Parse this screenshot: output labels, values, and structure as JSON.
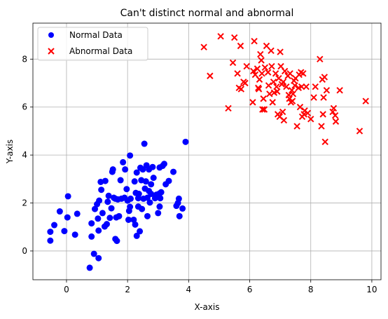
{
  "chart_data": {
    "type": "scatter",
    "title": "Can't distinct normal and abnormal",
    "xlabel": "X-axis",
    "ylabel": "Y-axis",
    "xlim": [
      -1.1,
      10.3
    ],
    "ylim": [
      -1.2,
      9.5
    ],
    "xticks": [
      0,
      2,
      4,
      6,
      8,
      10
    ],
    "yticks": [
      0,
      2,
      4,
      6,
      8
    ],
    "grid": true,
    "legend_position": "upper left",
    "series": [
      {
        "name": "Normal Data",
        "marker": "circle",
        "color": "#0000ff",
        "points": [
          [
            -0.53,
            0.43
          ],
          [
            -0.53,
            0.8
          ],
          [
            -0.4,
            1.08
          ],
          [
            -0.22,
            1.65
          ],
          [
            -0.07,
            0.83
          ],
          [
            0.03,
            1.4
          ],
          [
            0.05,
            2.28
          ],
          [
            0.28,
            0.68
          ],
          [
            0.35,
            1.55
          ],
          [
            0.76,
            -0.7
          ],
          [
            0.82,
            1.15
          ],
          [
            0.82,
            0.6
          ],
          [
            0.9,
            -0.12
          ],
          [
            0.93,
            1.75
          ],
          [
            1.0,
            1.95
          ],
          [
            1.05,
            0.85
          ],
          [
            1.03,
            1.35
          ],
          [
            1.05,
            -0.3
          ],
          [
            1.07,
            2.1
          ],
          [
            1.12,
            2.88
          ],
          [
            1.14,
            2.55
          ],
          [
            1.18,
            1.58
          ],
          [
            1.25,
            1.02
          ],
          [
            1.27,
            2.92
          ],
          [
            1.32,
            1.12
          ],
          [
            1.35,
            2.05
          ],
          [
            1.38,
            2.3
          ],
          [
            1.42,
            1.38
          ],
          [
            1.47,
            1.78
          ],
          [
            1.5,
            3.3
          ],
          [
            1.52,
            3.4
          ],
          [
            1.55,
            2.22
          ],
          [
            1.6,
            2.18
          ],
          [
            1.6,
            0.5
          ],
          [
            1.63,
            1.4
          ],
          [
            1.65,
            0.42
          ],
          [
            1.68,
            2.15
          ],
          [
            1.72,
            1.45
          ],
          [
            1.77,
            2.95
          ],
          [
            1.8,
            2.18
          ],
          [
            1.85,
            3.7
          ],
          [
            1.9,
            2.22
          ],
          [
            1.92,
            3.4
          ],
          [
            1.97,
            2.58
          ],
          [
            2.03,
            1.3
          ],
          [
            2.05,
            1.67
          ],
          [
            2.08,
            1.84
          ],
          [
            2.08,
            3.98
          ],
          [
            2.1,
            2.18
          ],
          [
            2.2,
            1.3
          ],
          [
            2.23,
            2.9
          ],
          [
            2.25,
            1.1
          ],
          [
            2.27,
            2.42
          ],
          [
            2.3,
            0.63
          ],
          [
            2.3,
            3.27
          ],
          [
            2.35,
            1.85
          ],
          [
            2.35,
            2.2
          ],
          [
            2.37,
            2.38
          ],
          [
            2.4,
            0.82
          ],
          [
            2.42,
            3.47
          ],
          [
            2.45,
            2.95
          ],
          [
            2.47,
            1.75
          ],
          [
            2.5,
            3.4
          ],
          [
            2.52,
            2.18
          ],
          [
            2.55,
            4.47
          ],
          [
            2.57,
            2.6
          ],
          [
            2.6,
            2.9
          ],
          [
            2.62,
            3.57
          ],
          [
            2.65,
            2.22
          ],
          [
            2.65,
            1.45
          ],
          [
            2.7,
            2.5
          ],
          [
            2.7,
            3.4
          ],
          [
            2.73,
            2.02
          ],
          [
            2.77,
            2.38
          ],
          [
            2.77,
            2.78
          ],
          [
            2.82,
            3.5
          ],
          [
            2.85,
            3.05
          ],
          [
            2.9,
            2.2
          ],
          [
            2.95,
            2.35
          ],
          [
            3.0,
            1.58
          ],
          [
            3.05,
            3.48
          ],
          [
            3.05,
            1.85
          ],
          [
            3.07,
            2.2
          ],
          [
            3.1,
            2.45
          ],
          [
            3.15,
            3.55
          ],
          [
            3.2,
            3.63
          ],
          [
            3.25,
            2.78
          ],
          [
            3.35,
            2.92
          ],
          [
            3.5,
            3.3
          ],
          [
            3.6,
            1.88
          ],
          [
            3.65,
            2.0
          ],
          [
            3.68,
            2.18
          ],
          [
            3.7,
            1.45
          ],
          [
            3.8,
            1.77
          ],
          [
            3.9,
            4.55
          ],
          [
            3.05,
            2.4
          ],
          [
            2.0,
            2.1
          ]
        ]
      },
      {
        "name": "Abnormal Data",
        "marker": "x",
        "color": "#ff0000",
        "points": [
          [
            4.5,
            8.5
          ],
          [
            4.7,
            7.3
          ],
          [
            5.05,
            8.95
          ],
          [
            5.3,
            5.95
          ],
          [
            5.45,
            7.85
          ],
          [
            5.5,
            8.9
          ],
          [
            5.6,
            7.4
          ],
          [
            5.65,
            6.8
          ],
          [
            5.7,
            8.55
          ],
          [
            5.72,
            6.75
          ],
          [
            5.8,
            7.05
          ],
          [
            5.85,
            7.0
          ],
          [
            5.9,
            7.7
          ],
          [
            6.1,
            6.2
          ],
          [
            6.12,
            7.5
          ],
          [
            6.15,
            8.75
          ],
          [
            6.18,
            7.35
          ],
          [
            6.25,
            7.6
          ],
          [
            6.28,
            6.8
          ],
          [
            6.3,
            6.75
          ],
          [
            6.32,
            7.15
          ],
          [
            6.35,
            8.2
          ],
          [
            6.38,
            7.95
          ],
          [
            6.4,
            7.4
          ],
          [
            6.42,
            5.9
          ],
          [
            6.45,
            6.35
          ],
          [
            6.48,
            5.9
          ],
          [
            6.5,
            7.65
          ],
          [
            6.55,
            8.55
          ],
          [
            6.6,
            7.45
          ],
          [
            6.62,
            6.9
          ],
          [
            6.65,
            6.55
          ],
          [
            6.7,
            8.35
          ],
          [
            6.72,
            7.7
          ],
          [
            6.75,
            6.2
          ],
          [
            6.78,
            7.05
          ],
          [
            6.8,
            6.6
          ],
          [
            6.85,
            7.4
          ],
          [
            6.88,
            6.85
          ],
          [
            6.9,
            6.65
          ],
          [
            6.92,
            5.7
          ],
          [
            6.95,
            7.2
          ],
          [
            6.98,
            5.6
          ],
          [
            7.0,
            8.3
          ],
          [
            7.02,
            7.7
          ],
          [
            7.05,
            6.95
          ],
          [
            7.08,
            5.8
          ],
          [
            7.1,
            7.05
          ],
          [
            7.12,
            5.45
          ],
          [
            7.15,
            7.5
          ],
          [
            7.2,
            6.85
          ],
          [
            7.25,
            7.3
          ],
          [
            7.28,
            6.5
          ],
          [
            7.3,
            6.35
          ],
          [
            7.32,
            7.4
          ],
          [
            7.35,
            6.2
          ],
          [
            7.38,
            6.7
          ],
          [
            7.4,
            6.25
          ],
          [
            7.42,
            6.55
          ],
          [
            7.45,
            7.1
          ],
          [
            7.48,
            6.9
          ],
          [
            7.5,
            7.2
          ],
          [
            7.55,
            5.2
          ],
          [
            7.6,
            6.8
          ],
          [
            7.62,
            7.35
          ],
          [
            7.65,
            6.0
          ],
          [
            7.68,
            7.45
          ],
          [
            7.7,
            6.85
          ],
          [
            7.72,
            5.6
          ],
          [
            7.75,
            7.4
          ],
          [
            7.78,
            5.7
          ],
          [
            7.8,
            5.85
          ],
          [
            7.85,
            6.85
          ],
          [
            7.9,
            5.75
          ],
          [
            8.0,
            5.5
          ],
          [
            8.1,
            6.4
          ],
          [
            8.15,
            6.85
          ],
          [
            8.3,
            8.0
          ],
          [
            8.35,
            5.2
          ],
          [
            8.38,
            7.15
          ],
          [
            8.4,
            5.7
          ],
          [
            8.42,
            6.4
          ],
          [
            8.45,
            7.25
          ],
          [
            8.47,
            4.55
          ],
          [
            8.52,
            6.7
          ],
          [
            8.72,
            5.8
          ],
          [
            8.75,
            5.95
          ],
          [
            8.8,
            5.65
          ],
          [
            8.82,
            5.4
          ],
          [
            8.95,
            6.7
          ],
          [
            9.6,
            5.0
          ],
          [
            9.8,
            6.25
          ]
        ]
      }
    ]
  }
}
